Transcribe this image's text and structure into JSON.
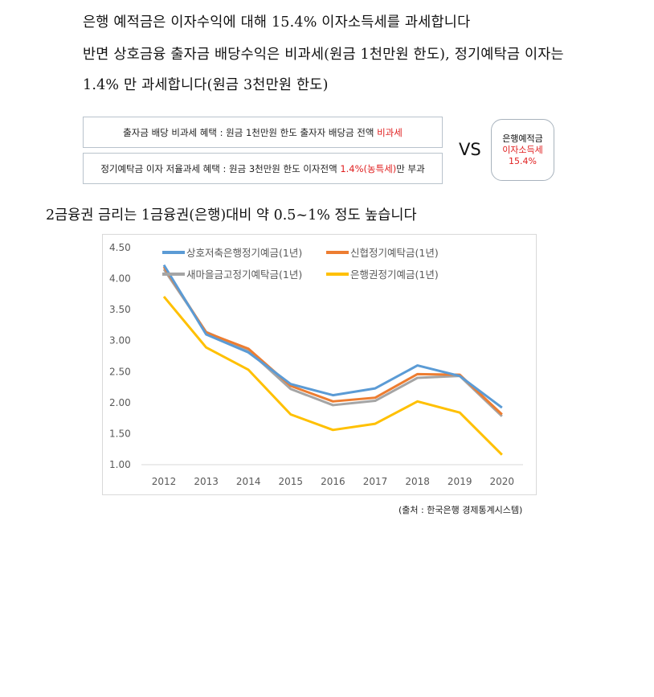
{
  "intro": {
    "line1": "은행 예적금은 이자수익에 대해 15.4% 이자소득세를 과세합니다",
    "line2": "반면 상호금융 출자금 배당수익은 비과세(원금 1천만원 한도), 정기예탁금 이자는",
    "line3": "1.4% 만 과세합니다(원금 3천만원 한도)"
  },
  "comparison": {
    "box1_text": "출자금 배당 비과세 혜택 : 원금 1천만원 한도 출자자 배당금 전액 ",
    "box1_highlight": "비과세",
    "box2_text": "정기예탁금 이자 저율과세 혜택 : 원금 3천만원 한도 이자전액 ",
    "box2_highlight": "1.4%(농특세)",
    "box2_suffix": "만 부과",
    "vs": "VS",
    "bank_line1": "은행예적금",
    "bank_line2": "이자소득세",
    "bank_line3": "15.4%",
    "highlight_color": "#e02020"
  },
  "heading": "2금융권 금리는 1금융권(은행)대비 약 0.5~1% 정도 높습니다",
  "chart_data": {
    "type": "line",
    "categories": [
      "2012",
      "2013",
      "2014",
      "2015",
      "2016",
      "2017",
      "2018",
      "2019",
      "2020"
    ],
    "ylim": [
      1.0,
      4.5
    ],
    "yticks": [
      "1.00",
      "1.50",
      "2.00",
      "2.50",
      "3.00",
      "3.50",
      "4.00",
      "4.50"
    ],
    "grid": false,
    "legend": "top",
    "series": [
      {
        "name": "상호저축은행정기예금(1년)",
        "color": "#5b9bd5",
        "values": [
          4.22,
          3.1,
          2.81,
          2.3,
          2.12,
          2.23,
          2.6,
          2.43,
          1.92
        ]
      },
      {
        "name": "신협정기예탁금(1년)",
        "color": "#ed7d31",
        "values": [
          4.19,
          3.13,
          2.87,
          2.27,
          2.02,
          2.08,
          2.46,
          2.45,
          1.81
        ]
      },
      {
        "name": "새마을금고정기예탁금(1년)",
        "color": "#a5a5a5",
        "values": [
          4.15,
          3.14,
          2.84,
          2.22,
          1.96,
          2.03,
          2.4,
          2.43,
          1.78
        ]
      },
      {
        "name": "은행권정기예금(1년)",
        "color": "#ffc000",
        "values": [
          3.71,
          2.89,
          2.53,
          1.81,
          1.56,
          1.66,
          2.02,
          1.84,
          1.16
        ]
      }
    ]
  },
  "source": "(출처 : 한국은행 경제통계시스템)"
}
